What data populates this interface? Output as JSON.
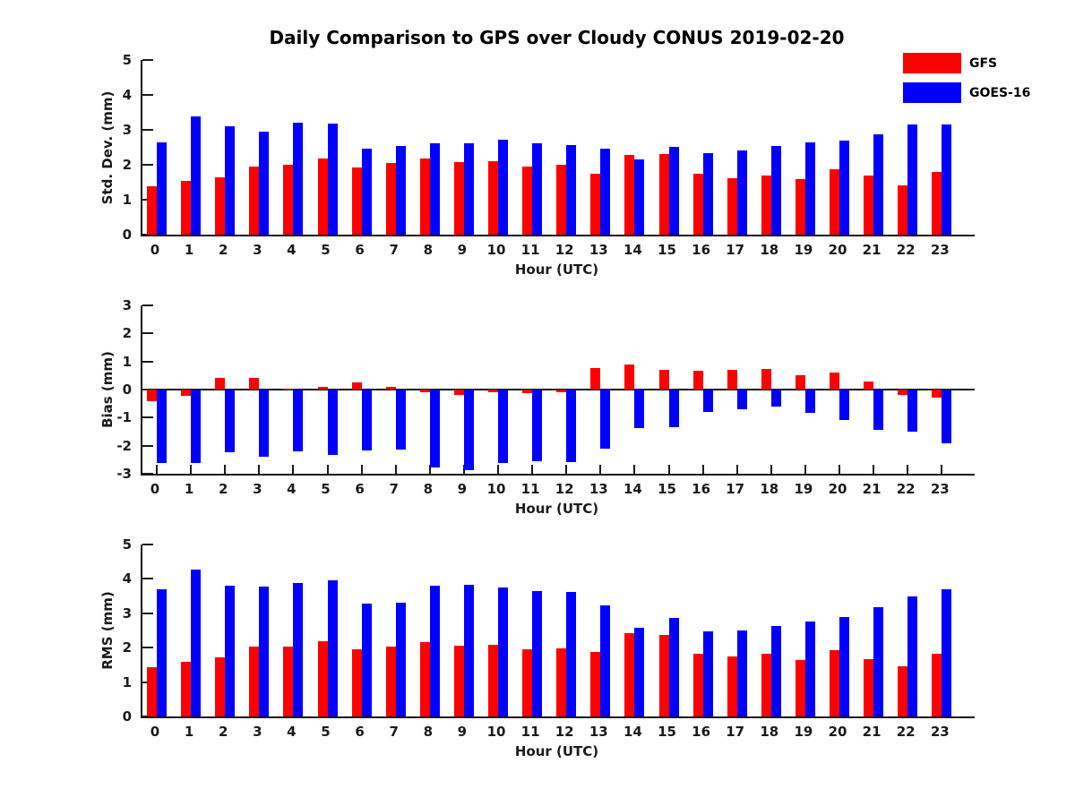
{
  "title": "Daily Comparison to GPS over Cloudy CONUS 2019-02-20",
  "legend": {
    "items": [
      {
        "label": "GFS",
        "color": "#ff0000"
      },
      {
        "label": "GOES-16",
        "color": "#0000ff"
      }
    ]
  },
  "colors": {
    "gfs": "#ff0000",
    "goes16": "#0000ff",
    "axis": "#1a1a1a"
  },
  "chart_data": [
    {
      "type": "bar",
      "panel": "std-dev",
      "ylabel": "Std. Dev. (mm)",
      "xlabel": "Hour (UTC)",
      "ylim": [
        0,
        5
      ],
      "yticks": [
        0,
        1,
        2,
        3,
        4,
        5
      ],
      "categories": [
        "0",
        "1",
        "2",
        "3",
        "4",
        "5",
        "6",
        "7",
        "8",
        "9",
        "10",
        "11",
        "12",
        "13",
        "14",
        "15",
        "16",
        "17",
        "18",
        "19",
        "20",
        "21",
        "22",
        "23"
      ],
      "legend_position": "top-right-of-figure",
      "grid": false,
      "series": [
        {
          "name": "GFS",
          "color": "#ff0000",
          "values": [
            1.38,
            1.55,
            1.65,
            1.95,
            2.0,
            2.18,
            1.92,
            2.05,
            2.17,
            2.07,
            2.1,
            1.95,
            2.0,
            1.75,
            2.27,
            2.31,
            1.75,
            1.62,
            1.68,
            1.59,
            1.86,
            1.68,
            1.41,
            1.79
          ]
        },
        {
          "name": "GOES-16",
          "color": "#0000ff",
          "values": [
            2.63,
            3.38,
            3.1,
            2.95,
            3.2,
            3.17,
            2.47,
            2.55,
            2.62,
            2.61,
            2.72,
            2.61,
            2.56,
            2.46,
            2.16,
            2.52,
            2.33,
            2.4,
            2.53,
            2.63,
            2.69,
            2.87,
            3.16,
            3.16
          ]
        }
      ]
    },
    {
      "type": "bar",
      "panel": "bias",
      "ylabel": "Bias (mm)",
      "xlabel": "Hour (UTC)",
      "ylim": [
        -3,
        3
      ],
      "yticks": [
        -3,
        -2,
        -1,
        0,
        1,
        2,
        3
      ],
      "categories": [
        "0",
        "1",
        "2",
        "3",
        "4",
        "5",
        "6",
        "7",
        "8",
        "9",
        "10",
        "11",
        "12",
        "13",
        "14",
        "15",
        "16",
        "17",
        "18",
        "19",
        "20",
        "21",
        "22",
        "23"
      ],
      "grid": false,
      "series": [
        {
          "name": "GFS",
          "color": "#ff0000",
          "values": [
            -0.42,
            -0.22,
            0.42,
            0.41,
            0.03,
            0.08,
            0.25,
            0.1,
            -0.08,
            -0.2,
            -0.1,
            -0.13,
            -0.11,
            0.76,
            0.9,
            0.7,
            0.67,
            0.69,
            0.75,
            0.51,
            0.62,
            0.28,
            -0.19,
            -0.29
          ]
        },
        {
          "name": "GOES-16",
          "color": "#0000ff",
          "values": [
            -2.61,
            -2.63,
            -2.22,
            -2.38,
            -2.2,
            -2.32,
            -2.16,
            -2.14,
            -2.79,
            -2.87,
            -2.61,
            -2.56,
            -2.59,
            -2.11,
            -1.37,
            -1.33,
            -0.8,
            -0.71,
            -0.61,
            -0.84,
            -1.08,
            -1.45,
            -1.5,
            -1.9
          ]
        }
      ]
    },
    {
      "type": "bar",
      "panel": "rms",
      "ylabel": "RMS (mm)",
      "xlabel": "Hour (UTC)",
      "ylim": [
        0,
        5
      ],
      "yticks": [
        0,
        1,
        2,
        3,
        4,
        5
      ],
      "categories": [
        "0",
        "1",
        "2",
        "3",
        "4",
        "5",
        "6",
        "7",
        "8",
        "9",
        "10",
        "11",
        "12",
        "13",
        "14",
        "15",
        "16",
        "17",
        "18",
        "19",
        "20",
        "21",
        "22",
        "23"
      ],
      "grid": false,
      "series": [
        {
          "name": "GFS",
          "color": "#ff0000",
          "values": [
            1.43,
            1.59,
            1.71,
            2.02,
            2.02,
            2.19,
            1.96,
            2.04,
            2.17,
            2.06,
            2.09,
            1.95,
            1.97,
            1.88,
            2.41,
            2.37,
            1.83,
            1.74,
            1.83,
            1.63,
            1.93,
            1.67,
            1.45,
            1.81
          ]
        },
        {
          "name": "GOES-16",
          "color": "#0000ff",
          "values": [
            3.7,
            4.27,
            3.8,
            3.77,
            3.88,
            3.96,
            3.28,
            3.31,
            3.8,
            3.83,
            3.75,
            3.64,
            3.61,
            3.22,
            2.57,
            2.86,
            2.48,
            2.51,
            2.62,
            2.77,
            2.9,
            3.19,
            3.5,
            3.69
          ]
        }
      ]
    }
  ]
}
